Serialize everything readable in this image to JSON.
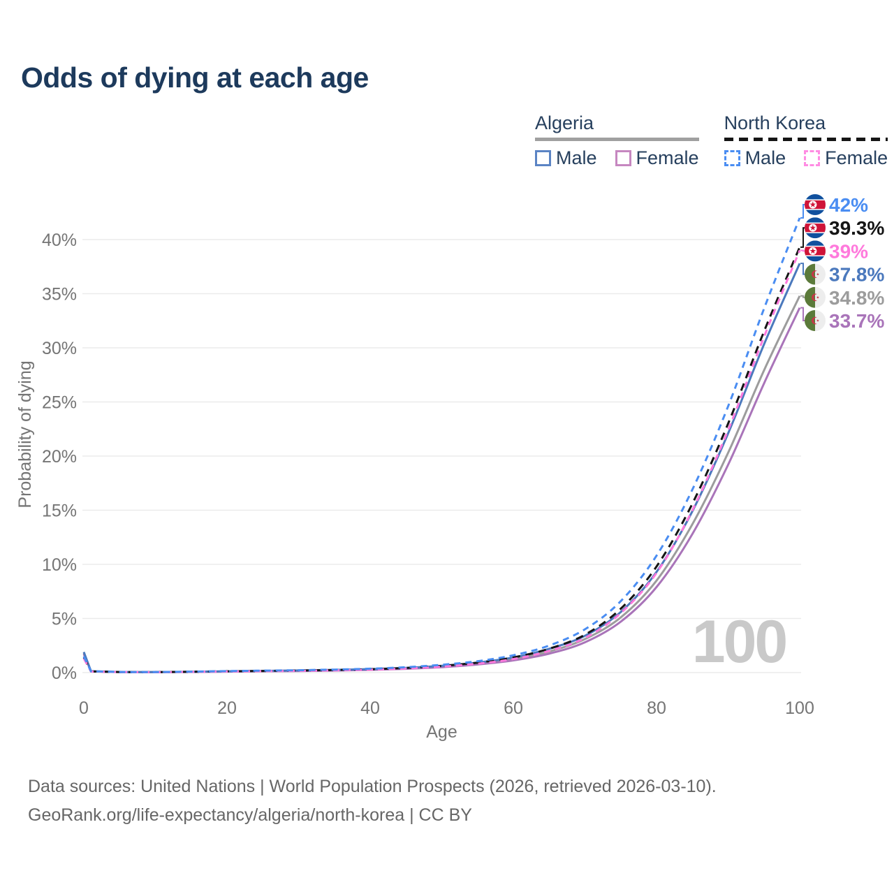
{
  "page": {
    "title": "Odds of dying at each age",
    "background": "#ffffff"
  },
  "legend": {
    "groups": [
      {
        "country": "Algeria",
        "underline_style": "solid",
        "underline_color": "#a0a0a0",
        "items": [
          {
            "label": "Male",
            "color": "#5b84c4",
            "dashed": false
          },
          {
            "label": "Female",
            "color": "#c687c0",
            "dashed": false
          }
        ]
      },
      {
        "country": "North Korea",
        "underline_style": "dashed",
        "underline_color": "#151515",
        "items": [
          {
            "label": "Male",
            "color": "#4a8df2",
            "dashed": true
          },
          {
            "label": "Female",
            "color": "#ff8ce3",
            "dashed": true
          }
        ]
      }
    ]
  },
  "chart_data": {
    "type": "line",
    "title": "Odds of dying at each age",
    "xlabel": "Age",
    "ylabel": "Probability of dying",
    "watermark": "100",
    "grid": "horizontal",
    "gridline_color": "#ebebeb",
    "tick_color": "#757575",
    "xlim": [
      0,
      100
    ],
    "ylim_percent": [
      0,
      43.5
    ],
    "x_ticks": [
      0,
      20,
      40,
      60,
      80,
      100
    ],
    "y_ticks": [
      {
        "value": 0,
        "label": "0%"
      },
      {
        "value": 5,
        "label": "5%"
      },
      {
        "value": 10,
        "label": "10%"
      },
      {
        "value": 15,
        "label": "15%"
      },
      {
        "value": 20,
        "label": "20%"
      },
      {
        "value": 25,
        "label": "25%"
      },
      {
        "value": 30,
        "label": "30%"
      },
      {
        "value": 35,
        "label": "35%"
      },
      {
        "value": 40,
        "label": "40%"
      }
    ],
    "ages": [
      0,
      1,
      5,
      10,
      15,
      20,
      25,
      30,
      35,
      40,
      45,
      50,
      55,
      60,
      65,
      70,
      75,
      80,
      85,
      90,
      95,
      100
    ],
    "series": [
      {
        "name": "Algeria combined",
        "country": "Algeria",
        "sex": "both",
        "color": "#9c9c9c",
        "dash": false,
        "flag": "algeria",
        "row": 4,
        "end_label": "34.8%",
        "values": [
          1.8,
          0.12,
          0.055,
          0.045,
          0.07,
          0.1,
          0.14,
          0.17,
          0.22,
          0.28,
          0.39,
          0.56,
          0.84,
          1.26,
          1.95,
          3.1,
          5.1,
          8.5,
          13.7,
          20.3,
          27.9,
          34.8
        ]
      },
      {
        "name": "Algeria Female",
        "country": "Algeria",
        "sex": "female",
        "color": "#a974b9",
        "dash": false,
        "flag": "algeria",
        "row": 5,
        "end_label": "33.7%",
        "values": [
          1.7,
          0.11,
          0.05,
          0.04,
          0.06,
          0.09,
          0.12,
          0.15,
          0.19,
          0.25,
          0.35,
          0.5,
          0.75,
          1.13,
          1.75,
          2.8,
          4.7,
          7.9,
          12.8,
          19.2,
          26.7,
          33.7
        ]
      },
      {
        "name": "Algeria Male",
        "country": "Algeria",
        "sex": "male",
        "color": "#4b79bd",
        "dash": false,
        "flag": "algeria",
        "row": 3,
        "end_label": "37.8%",
        "values": [
          1.9,
          0.13,
          0.06,
          0.05,
          0.08,
          0.12,
          0.16,
          0.2,
          0.25,
          0.32,
          0.44,
          0.63,
          0.93,
          1.4,
          2.2,
          3.4,
          5.6,
          9.3,
          14.9,
          22.1,
          30.3,
          37.8
        ]
      },
      {
        "name": "North Korea combined",
        "country": "North Korea",
        "sex": "both",
        "color": "#151515",
        "dash": true,
        "flag": "north-korea",
        "row": 1,
        "end_label": "39.3%",
        "values": [
          1.4,
          0.11,
          0.055,
          0.045,
          0.08,
          0.12,
          0.15,
          0.19,
          0.24,
          0.31,
          0.43,
          0.62,
          0.92,
          1.4,
          2.2,
          3.5,
          5.9,
          9.8,
          15.6,
          23.0,
          31.5,
          39.3
        ]
      },
      {
        "name": "North Korea Female",
        "country": "North Korea",
        "sex": "female",
        "color": "#ff79dc",
        "dash": true,
        "flag": "north-korea",
        "row": 2,
        "end_label": "39%",
        "values": [
          1.3,
          0.1,
          0.05,
          0.04,
          0.07,
          0.1,
          0.13,
          0.16,
          0.21,
          0.27,
          0.38,
          0.55,
          0.82,
          1.25,
          2.0,
          3.2,
          5.5,
          9.2,
          15.0,
          22.4,
          31.0,
          39.0
        ]
      },
      {
        "name": "North Korea Male",
        "country": "North Korea",
        "sex": "male",
        "color": "#4a8df2",
        "dash": true,
        "flag": "north-korea",
        "row": 0,
        "end_label": "42%",
        "values": [
          1.5,
          0.12,
          0.06,
          0.05,
          0.09,
          0.14,
          0.18,
          0.22,
          0.28,
          0.36,
          0.5,
          0.72,
          1.05,
          1.6,
          2.5,
          4.0,
          6.6,
          10.8,
          16.9,
          24.6,
          33.6,
          42.0
        ]
      }
    ]
  },
  "footer": {
    "line1": "Data sources: United Nations | World Population Prospects (2026, retrieved 2026-03-10).",
    "line2": "GeoRank.org/life-expectancy/algeria/north-korea | CC BY"
  }
}
